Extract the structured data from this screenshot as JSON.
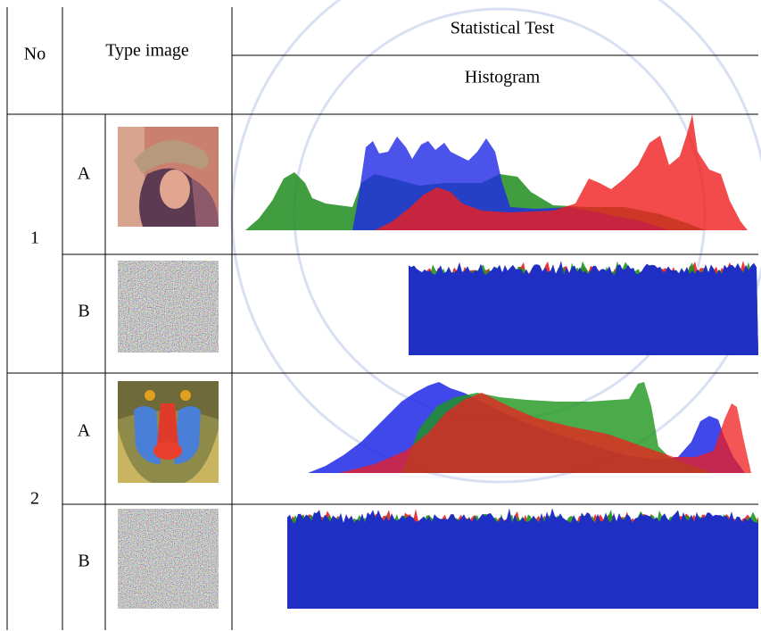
{
  "table": {
    "header": {
      "no": "No",
      "type_image": "Type image",
      "statistical_test": "Statistical Test",
      "histogram": "Histogram"
    },
    "rows": [
      {
        "no": "1",
        "a": "A",
        "b": "B"
      },
      {
        "no": "2",
        "a": "A",
        "b": "B"
      }
    ]
  }
}
